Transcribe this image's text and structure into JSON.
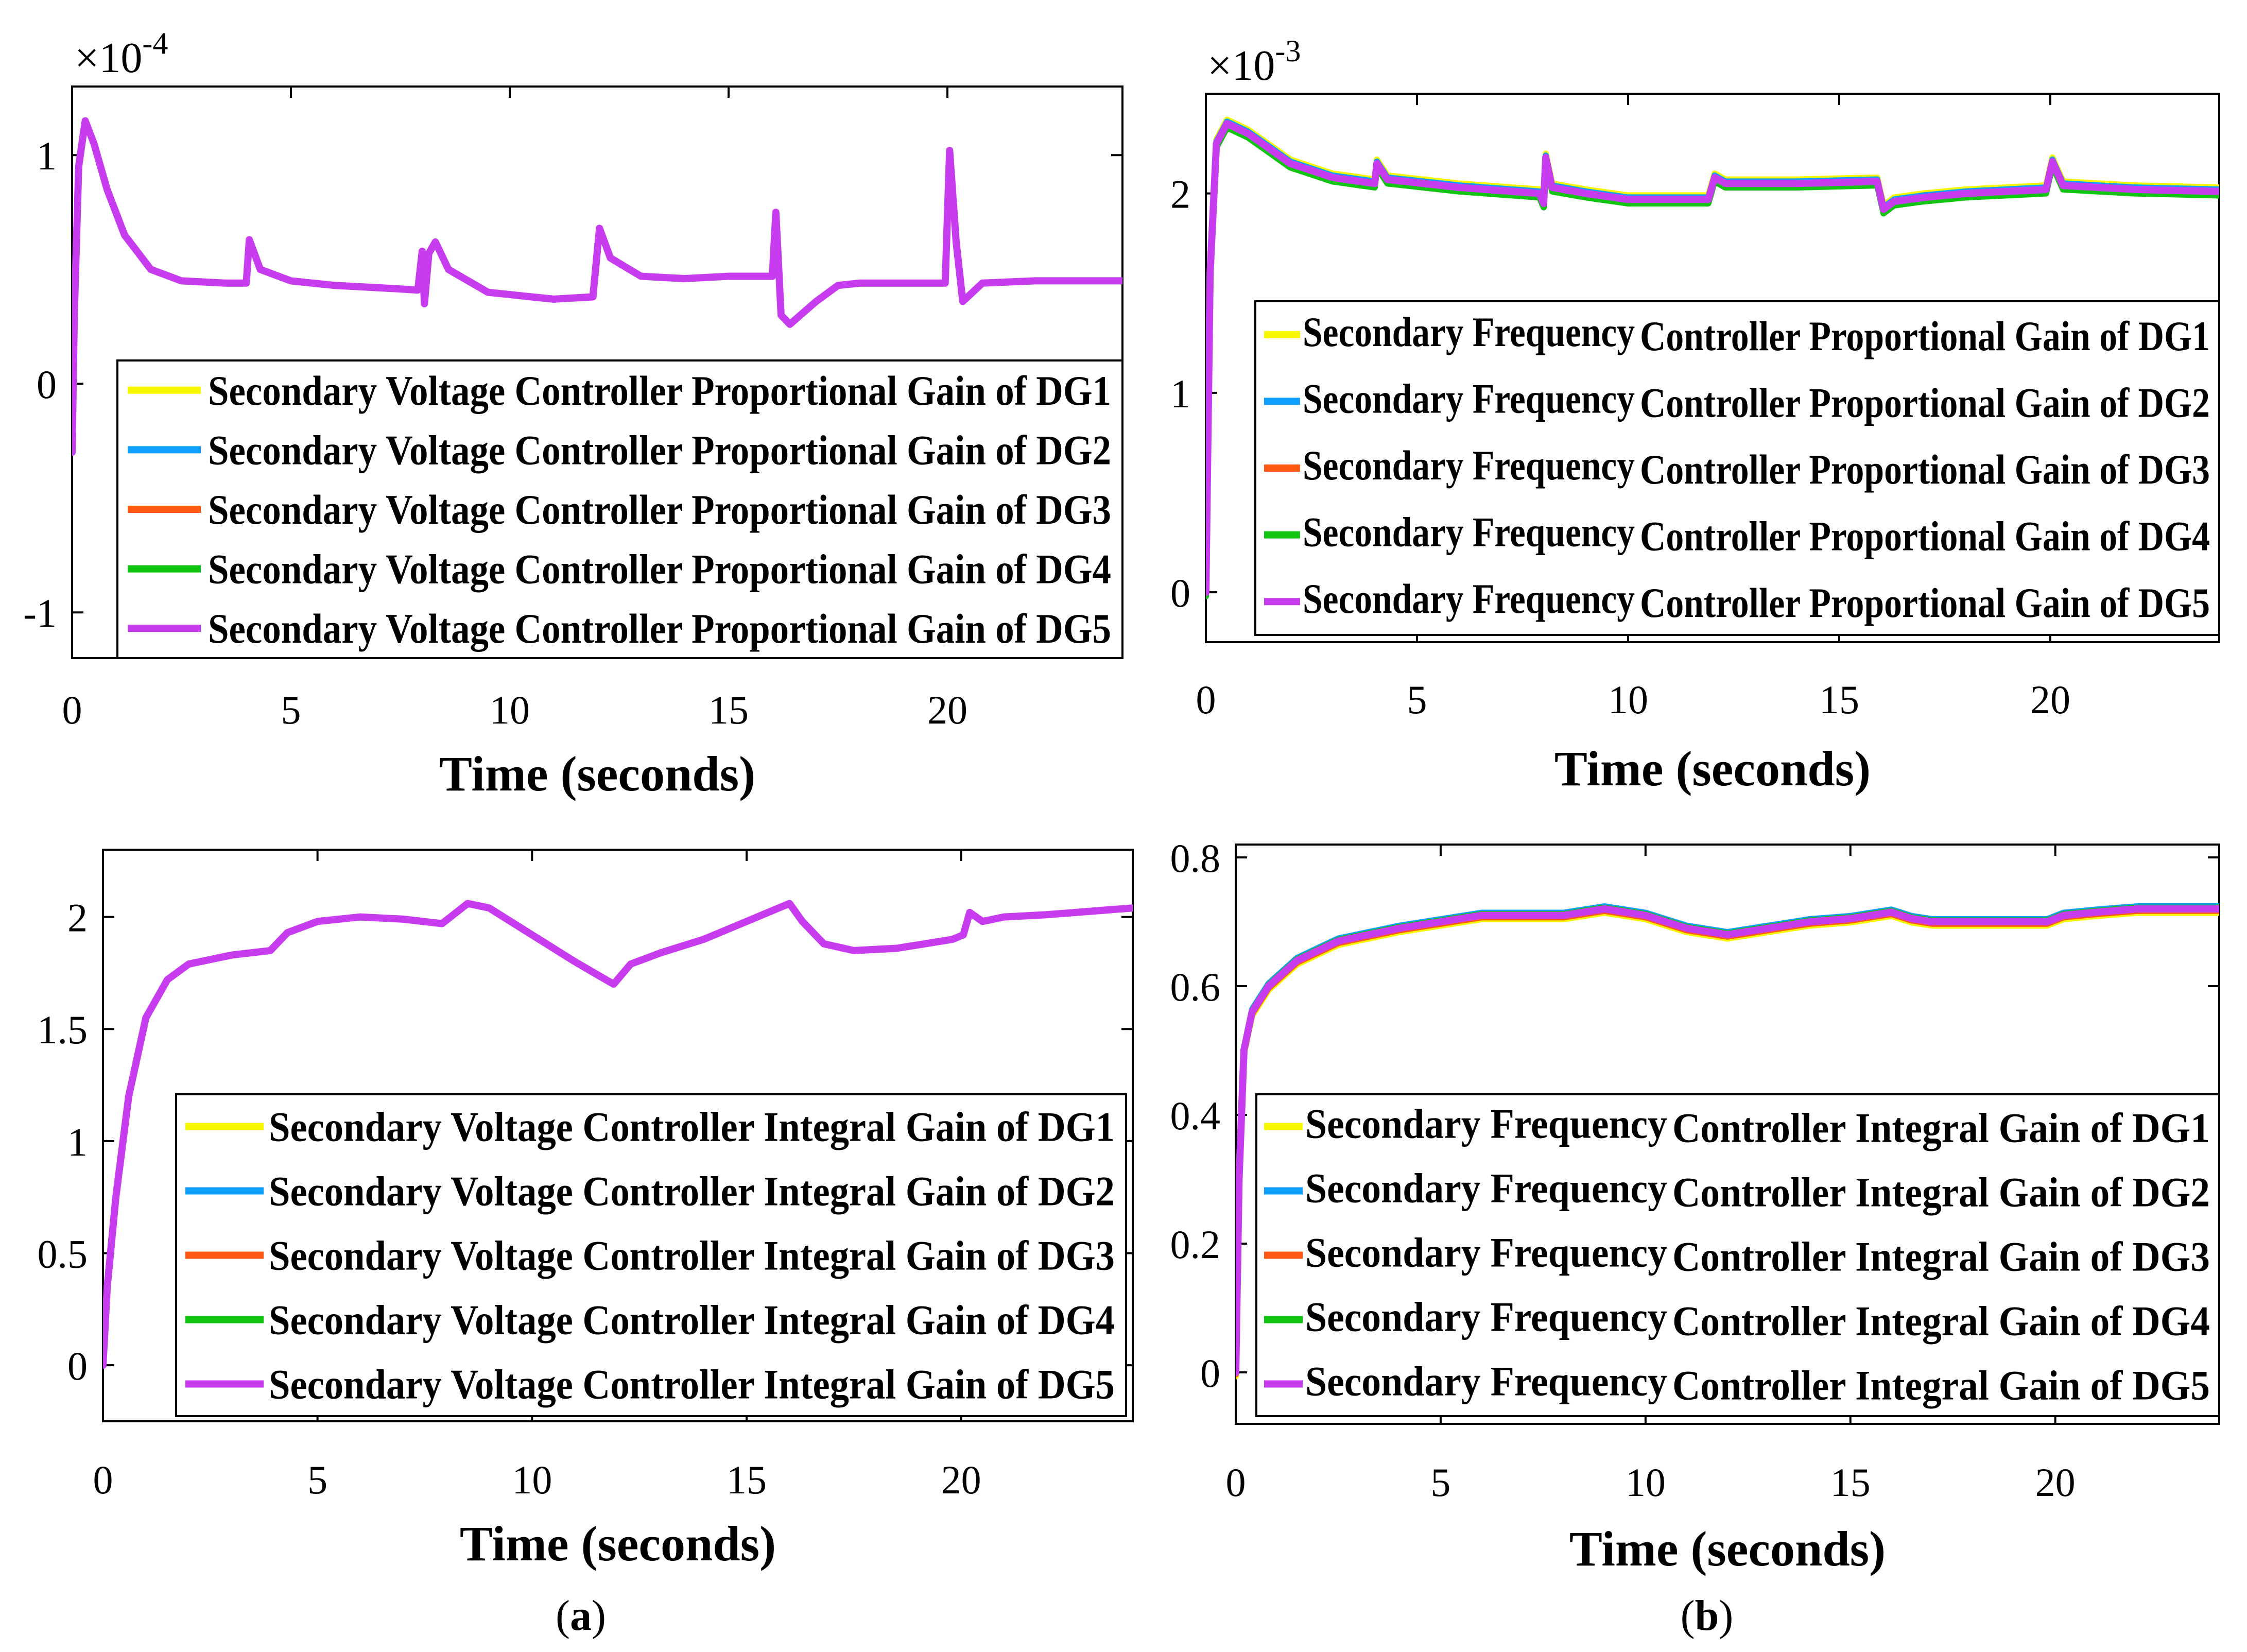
{
  "chart_data": [
    {
      "type": "line",
      "panel": "a-top",
      "xlabel": "Time (seconds)",
      "ylabel": "",
      "scale_label": "×10",
      "scale_exp": "-4",
      "xlim": [
        0,
        24
      ],
      "ylim": [
        -1.2,
        1.3
      ],
      "xticks": [
        0,
        5,
        10,
        15,
        20
      ],
      "yticks": [
        -1,
        0,
        1
      ],
      "legend_location": "lower-right",
      "series": [
        {
          "name": "Secondary Voltage Controller Proportional Gain of DG1",
          "color": "#f7f700",
          "offset": 0
        },
        {
          "name": "Secondary Voltage Controller Proportional Gain of DG2",
          "color": "#0f9fff",
          "offset": 0
        },
        {
          "name": "Secondary Voltage Controller Proportional Gain of DG3",
          "color": "#ff5a14",
          "offset": 0
        },
        {
          "name": "Secondary Voltage Controller Proportional Gain of DG4",
          "color": "#12c512",
          "offset": 0
        },
        {
          "name": "Secondary Voltage Controller Proportional Gain of DG5",
          "color": "#c83cf0",
          "offset": 0
        }
      ],
      "points": [
        [
          0,
          -0.3
        ],
        [
          0.05,
          0.3
        ],
        [
          0.15,
          0.95
        ],
        [
          0.3,
          1.15
        ],
        [
          0.5,
          1.05
        ],
        [
          0.8,
          0.85
        ],
        [
          1.2,
          0.65
        ],
        [
          1.8,
          0.5
        ],
        [
          2.5,
          0.45
        ],
        [
          3.5,
          0.44
        ],
        [
          3.98,
          0.44
        ],
        [
          4.05,
          0.63
        ],
        [
          4.3,
          0.5
        ],
        [
          5,
          0.45
        ],
        [
          6,
          0.43
        ],
        [
          7,
          0.42
        ],
        [
          7.9,
          0.41
        ],
        [
          8.0,
          0.58
        ],
        [
          8.05,
          0.35
        ],
        [
          8.15,
          0.57
        ],
        [
          8.3,
          0.62
        ],
        [
          8.6,
          0.5
        ],
        [
          9.5,
          0.4
        ],
        [
          10.5,
          0.38
        ],
        [
          11,
          0.37
        ],
        [
          11.9,
          0.38
        ],
        [
          12.05,
          0.68
        ],
        [
          12.3,
          0.55
        ],
        [
          13,
          0.47
        ],
        [
          14,
          0.46
        ],
        [
          15,
          0.47
        ],
        [
          16.0,
          0.47
        ],
        [
          16.08,
          0.75
        ],
        [
          16.2,
          0.3
        ],
        [
          16.4,
          0.26
        ],
        [
          17,
          0.36
        ],
        [
          17.5,
          0.43
        ],
        [
          18,
          0.44
        ],
        [
          19,
          0.44
        ],
        [
          19.95,
          0.44
        ],
        [
          20.05,
          1.02
        ],
        [
          20.2,
          0.62
        ],
        [
          20.35,
          0.36
        ],
        [
          20.8,
          0.44
        ],
        [
          22,
          0.45
        ],
        [
          24,
          0.45
        ]
      ]
    },
    {
      "type": "line",
      "panel": "b-top",
      "xlabel": "Time (seconds)",
      "ylabel": "",
      "scale_label": "×10",
      "scale_exp": "-3",
      "xlim": [
        0,
        24
      ],
      "ylim": [
        -0.25,
        2.5
      ],
      "xticks": [
        0,
        5,
        10,
        15,
        20
      ],
      "yticks": [
        0,
        1,
        2
      ],
      "legend_location": "lower-right",
      "series": [
        {
          "name_a": "Secondary Frequency",
          "name_b": "Controller Proportional Gain of DG1",
          "color": "#f7f700",
          "offset": 0.02
        },
        {
          "name_a": "Secondary Frequency",
          "name_b": "Controller Proportional Gain of DG2",
          "color": "#0f9fff",
          "offset": 0.01
        },
        {
          "name_a": "Secondary Frequency",
          "name_b": "Controller Proportional Gain of DG3",
          "color": "#ff5a14",
          "offset": -0.01
        },
        {
          "name_a": "Secondary Frequency",
          "name_b": "Controller Proportional Gain of DG4",
          "color": "#12c512",
          "offset": -0.02
        },
        {
          "name_a": "Secondary Frequency",
          "name_b": "Controller Proportional Gain of DG5",
          "color": "#c83cf0",
          "offset": 0
        }
      ],
      "points": [
        [
          0,
          0
        ],
        [
          0.1,
          1.6
        ],
        [
          0.25,
          2.25
        ],
        [
          0.5,
          2.35
        ],
        [
          1,
          2.3
        ],
        [
          2,
          2.15
        ],
        [
          3,
          2.08
        ],
        [
          4,
          2.05
        ],
        [
          4.05,
          2.15
        ],
        [
          4.3,
          2.07
        ],
        [
          6,
          2.03
        ],
        [
          7.9,
          2.0
        ],
        [
          8.0,
          1.95
        ],
        [
          8.05,
          2.18
        ],
        [
          8.2,
          2.03
        ],
        [
          9,
          2.0
        ],
        [
          10,
          1.97
        ],
        [
          11.9,
          1.97
        ],
        [
          12.05,
          2.08
        ],
        [
          12.3,
          2.05
        ],
        [
          14,
          2.05
        ],
        [
          15.9,
          2.06
        ],
        [
          16.05,
          1.92
        ],
        [
          16.3,
          1.96
        ],
        [
          17,
          1.98
        ],
        [
          18,
          2.0
        ],
        [
          19.9,
          2.02
        ],
        [
          20.05,
          2.16
        ],
        [
          20.3,
          2.04
        ],
        [
          22,
          2.02
        ],
        [
          24,
          2.01
        ]
      ]
    },
    {
      "type": "line",
      "panel": "a-bottom",
      "xlabel": "Time (seconds)",
      "ylabel": "",
      "xlim": [
        0,
        24
      ],
      "ylim": [
        -0.25,
        2.3
      ],
      "xticks": [
        0,
        5,
        10,
        15,
        20
      ],
      "yticks": [
        0,
        0.5,
        1,
        1.5,
        2
      ],
      "ytick_labels": [
        "0",
        "0.5",
        "1",
        "1.5",
        "2"
      ],
      "legend_location": "lower-right",
      "series": [
        {
          "name": "Secondary Voltage Controller Integral Gain of DG1",
          "color": "#f7f700",
          "offset": 0
        },
        {
          "name": "Secondary Voltage Controller Integral Gain of DG2",
          "color": "#0f9fff",
          "offset": 0
        },
        {
          "name": "Secondary Voltage Controller Integral Gain of DG3",
          "color": "#ff5a14",
          "offset": 0
        },
        {
          "name": "Secondary Voltage Controller Integral Gain of DG4",
          "color": "#12c512",
          "offset": 0
        },
        {
          "name": "Secondary Voltage Controller Integral Gain of DG5",
          "color": "#c83cf0",
          "offset": 0
        }
      ],
      "points": [
        [
          0,
          0
        ],
        [
          0.1,
          0.35
        ],
        [
          0.3,
          0.75
        ],
        [
          0.6,
          1.2
        ],
        [
          1,
          1.55
        ],
        [
          1.5,
          1.72
        ],
        [
          2,
          1.79
        ],
        [
          3,
          1.83
        ],
        [
          3.9,
          1.85
        ],
        [
          4.3,
          1.93
        ],
        [
          5,
          1.98
        ],
        [
          6,
          2.0
        ],
        [
          7,
          1.99
        ],
        [
          7.9,
          1.97
        ],
        [
          8.1,
          2.0
        ],
        [
          8.5,
          2.06
        ],
        [
          9,
          2.04
        ],
        [
          10,
          1.92
        ],
        [
          11,
          1.8
        ],
        [
          11.9,
          1.7
        ],
        [
          12.3,
          1.79
        ],
        [
          13,
          1.84
        ],
        [
          14,
          1.9
        ],
        [
          15,
          1.98
        ],
        [
          16,
          2.06
        ],
        [
          16.3,
          1.98
        ],
        [
          16.8,
          1.88
        ],
        [
          17.5,
          1.85
        ],
        [
          18.5,
          1.86
        ],
        [
          19.8,
          1.9
        ],
        [
          20.05,
          1.92
        ],
        [
          20.2,
          2.02
        ],
        [
          20.5,
          1.98
        ],
        [
          21,
          2.0
        ],
        [
          22,
          2.01
        ],
        [
          24,
          2.04
        ]
      ]
    },
    {
      "type": "line",
      "panel": "b-bottom",
      "xlabel": "Time (seconds)",
      "ylabel": "",
      "xlim": [
        0,
        24
      ],
      "ylim": [
        -0.08,
        0.82
      ],
      "xticks": [
        0,
        5,
        10,
        15,
        20
      ],
      "yticks": [
        0,
        0.2,
        0.4,
        0.6,
        0.8
      ],
      "ytick_labels": [
        "0",
        "0.2",
        "0.4",
        "0.6",
        "0.8"
      ],
      "legend_location": "lower-right",
      "series": [
        {
          "name_a": "Secondary Frequency",
          "name_b": "Controller Integral Gain of DG1",
          "color": "#f7f700",
          "offset": -0.006
        },
        {
          "name_a": "Secondary Frequency",
          "name_b": "Controller Integral Gain of DG2",
          "color": "#0f9fff",
          "offset": 0.004
        },
        {
          "name_a": "Secondary Frequency",
          "name_b": "Controller Integral Gain of DG3",
          "color": "#ff5a14",
          "offset": -0.003
        },
        {
          "name_a": "Secondary Frequency",
          "name_b": "Controller Integral Gain of DG4",
          "color": "#12c512",
          "offset": 0.002
        },
        {
          "name_a": "Secondary Frequency",
          "name_b": "Controller Integral Gain of DG5",
          "color": "#c83cf0",
          "offset": 0
        }
      ],
      "points": [
        [
          0,
          0
        ],
        [
          0.08,
          0.3
        ],
        [
          0.2,
          0.5
        ],
        [
          0.4,
          0.56
        ],
        [
          0.8,
          0.6
        ],
        [
          1.5,
          0.64
        ],
        [
          2.5,
          0.67
        ],
        [
          4,
          0.69
        ],
        [
          5,
          0.7
        ],
        [
          6,
          0.71
        ],
        [
          7,
          0.71
        ],
        [
          8,
          0.71
        ],
        [
          9,
          0.72
        ],
        [
          10,
          0.71
        ],
        [
          11,
          0.69
        ],
        [
          12,
          0.68
        ],
        [
          13,
          0.69
        ],
        [
          14,
          0.7
        ],
        [
          15,
          0.705
        ],
        [
          16,
          0.715
        ],
        [
          16.5,
          0.705
        ],
        [
          17,
          0.7
        ],
        [
          18,
          0.7
        ],
        [
          19.8,
          0.7
        ],
        [
          20.2,
          0.71
        ],
        [
          21,
          0.715
        ],
        [
          22,
          0.72
        ],
        [
          24,
          0.72
        ]
      ]
    }
  ],
  "panel_labels": {
    "a_open": "(",
    "a": "a",
    "a_close": ")",
    "b_open": "(",
    "b": "b",
    "b_close": ")"
  }
}
